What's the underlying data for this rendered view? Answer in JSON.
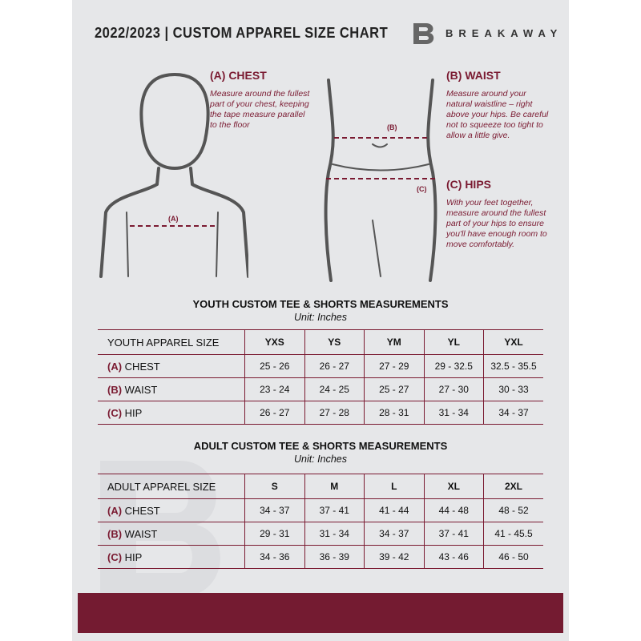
{
  "header": {
    "title": "2022/2023  |  CUSTOM APPAREL SIZE CHART",
    "brand": "BREAKAWAY",
    "logo_letter": "B"
  },
  "measures": {
    "chest": {
      "title": "(A) CHEST",
      "desc": "Measure around the fullest part of your chest, keeping the tape measure parallel to the floor",
      "marker": "(A)"
    },
    "waist": {
      "title": "(B) WAIST",
      "desc": "Measure around your natural waistline – right above your hips. Be careful not to squeeze too tight to allow a little give.",
      "marker": "(B)"
    },
    "hips": {
      "title": "(C) HIPS",
      "desc": "With your feet together, measure around the fullest part of your hips to ensure you'll have enough room to move comfortably.",
      "marker": "(C)"
    }
  },
  "youth": {
    "title": "YOUTH CUSTOM TEE & SHORTS MEASUREMENTS",
    "unit": "Unit: Inches",
    "size_label": "YOUTH APPAREL SIZE",
    "sizes": [
      "YXS",
      "YS",
      "YM",
      "YL",
      "YXL"
    ],
    "rows": [
      {
        "code": "(A)",
        "name": "CHEST",
        "values": [
          "25 - 26",
          "26 - 27",
          "27 - 29",
          "29 - 32.5",
          "32.5 - 35.5"
        ]
      },
      {
        "code": "(B)",
        "name": "WAIST",
        "values": [
          "23 - 24",
          "24 - 25",
          "25 - 27",
          "27 - 30",
          "30 - 33"
        ]
      },
      {
        "code": "(C)",
        "name": "HIP",
        "values": [
          "26 - 27",
          "27 - 28",
          "28 - 31",
          "31 - 34",
          "34 - 37"
        ]
      }
    ]
  },
  "adult": {
    "title": "ADULT CUSTOM TEE & SHORTS MEASUREMENTS",
    "unit": "Unit: Inches",
    "size_label": "ADULT APPAREL SIZE",
    "sizes": [
      "S",
      "M",
      "L",
      "XL",
      "2XL"
    ],
    "rows": [
      {
        "code": "(A)",
        "name": "CHEST",
        "values": [
          "34 - 37",
          "37 - 41",
          "41 - 44",
          "44 - 48",
          "48 - 52"
        ]
      },
      {
        "code": "(B)",
        "name": "WAIST",
        "values": [
          "29 - 31",
          "31 - 34",
          "34 - 37",
          "37 - 41",
          "41 - 45.5"
        ]
      },
      {
        "code": "(C)",
        "name": "HIP",
        "values": [
          "34 - 36",
          "36 - 39",
          "39 - 42",
          "43 - 46",
          "46 - 50"
        ]
      }
    ]
  },
  "colors": {
    "accent": "#7a1a31",
    "background": "#e6e7e9"
  }
}
